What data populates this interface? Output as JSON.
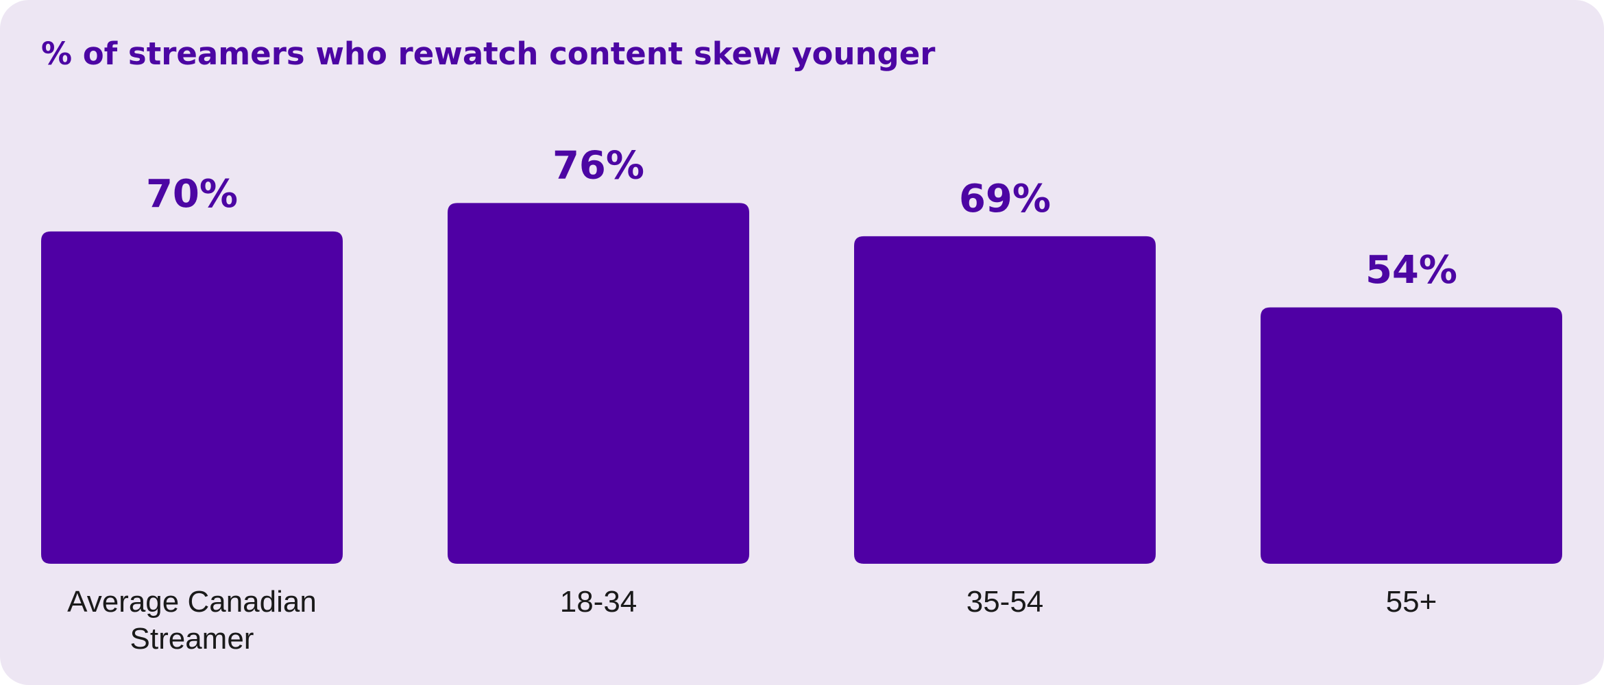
{
  "colors": {
    "background": "#EDE6F3",
    "bar": "#4F00A4",
    "title": "#4C06A3",
    "value_label": "#4C06A3",
    "category_label": "#1A1A1A"
  },
  "chart_data": {
    "type": "bar",
    "title": "% of streamers who rewatch content skew younger",
    "categories": [
      [
        "Average Canadian",
        "Streamer"
      ],
      [
        "18-34"
      ],
      [
        "35-54"
      ],
      [
        "55+"
      ]
    ],
    "values": [
      70,
      76,
      69,
      54
    ],
    "value_labels": [
      "70%",
      "76%",
      "69%",
      "54%"
    ],
    "ylim": [
      0,
      100
    ],
    "grid": false,
    "legend": "none",
    "y_axis_visible": false
  }
}
